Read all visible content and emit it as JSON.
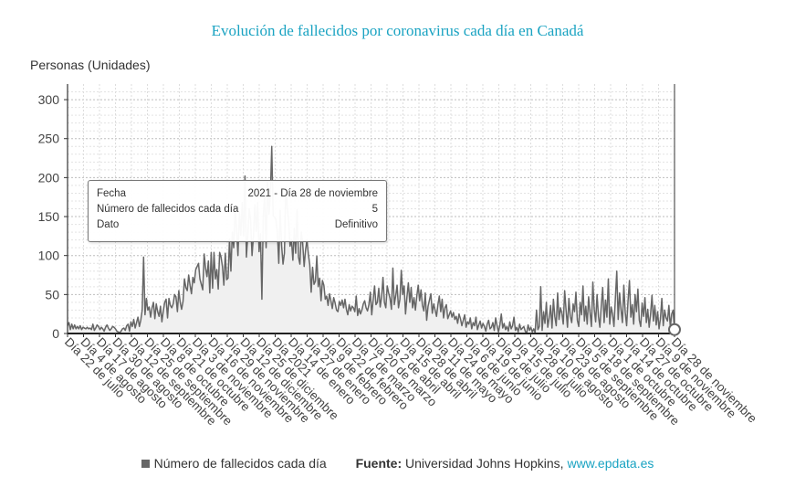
{
  "title": "Evolución de fallecidos por coronavirus cada día en Canadá",
  "y_axis_label": "Personas (Unidades)",
  "tooltip": {
    "rows": [
      {
        "key": "Fecha",
        "value": "2021 - Día 28 de noviembre"
      },
      {
        "key": "Número de fallecidos cada día",
        "value": "5"
      },
      {
        "key": "Dato",
        "value": "Definitivo"
      }
    ]
  },
  "legend": {
    "series_label": "Número de fallecidos cada día"
  },
  "source": {
    "label": "Fuente:",
    "text": "Universidad Johns Hopkins,",
    "link": "www.epdata.es"
  },
  "colors": {
    "title": "#1aa3c2",
    "series": "#666666",
    "link": "#1aa3c2",
    "fill": "#f0f0f0"
  },
  "chart_data": {
    "type": "area",
    "title": "Evolución de fallecidos por coronavirus cada día en Canadá",
    "ylabel": "Personas (Unidades)",
    "ylim": [
      0,
      320
    ],
    "yticks": [
      0,
      50,
      100,
      150,
      200,
      250,
      300
    ],
    "grid": true,
    "legend_position": "bottom",
    "x_tick_labels": [
      "Día 22 de julio",
      "Día 4 de agosto",
      "Día 17 de agosto",
      "Día 30 de agosto",
      "Día 12 de septiembre",
      "Día 25 de septiembre",
      "Día 8 de octubre",
      "Día 21 de octubre",
      "Día 3 de noviembre",
      "Día 16 de noviembre",
      "Día 29 de noviembre",
      "Día 12 de diciembre",
      "Día 25 de diciembre",
      "Día 2021",
      "Día 14 de enero",
      "Día 27 de enero",
      "Día 9 de febrero",
      "Día 22 de febrero",
      "Día 7 de marzo",
      "Día 20 de marzo",
      "Día 2 de abril",
      "Día 15 de abril",
      "Día 28 de abril",
      "Día 11 de mayo",
      "Día 24 de mayo",
      "Día 6 de junio",
      "Día 19 de junio",
      "Día 2 de julio",
      "Día 15 de julio",
      "Día 28 de julio",
      "Día 10 de agosto",
      "Día 23 de agosto",
      "Día 5 de septiembre",
      "Día 18 de septiembre",
      "Día 1 de octubre",
      "Día 14 de octubre",
      "Día 27 de octubre",
      "Día 9 de noviembre",
      "Día 28 de noviembre"
    ],
    "series": [
      {
        "name": "Número de fallecidos cada día",
        "x_start": "2020-07-22",
        "x_end": "2021-11-28",
        "values": [
          10,
          14,
          5,
          12,
          6,
          11,
          6,
          9,
          6,
          10,
          5,
          8,
          7,
          6,
          8,
          6,
          7,
          5,
          12,
          4,
          7,
          11,
          9,
          5,
          8,
          6,
          3,
          8,
          11,
          7,
          4,
          6,
          9,
          8,
          6,
          3,
          2,
          1,
          3,
          6,
          7,
          4,
          10,
          12,
          3,
          15,
          9,
          18,
          7,
          14,
          21,
          9,
          17,
          30,
          98,
          24,
          45,
          30,
          34,
          21,
          33,
          40,
          19,
          38,
          28,
          22,
          35,
          15,
          29,
          40,
          44,
          20,
          45,
          36,
          33,
          38,
          50,
          47,
          28,
          55,
          40,
          31,
          41,
          70,
          59,
          55,
          75,
          62,
          51,
          72,
          65,
          82,
          86,
          90,
          70,
          63,
          56,
          102,
          84,
          73,
          93,
          52,
          104,
          58,
          104,
          70,
          82,
          57,
          104,
          98,
          86,
          62,
          103,
          69,
          71,
          121,
          80,
          130,
          110,
          160,
          135,
          100,
          155,
          126,
          168,
          125,
          202,
          98,
          126,
          160,
          145,
          100,
          125,
          165,
          131,
          168,
          105,
          128,
          44,
          152,
          177,
          110,
          195,
          153,
          177,
          240,
          151,
          149,
          146,
          129,
          90,
          158,
          113,
          89,
          103,
          188,
          163,
          144,
          112,
          120,
          94,
          135,
          103,
          159,
          98,
          89,
          130,
          115,
          86,
          107,
          120,
          102,
          88,
          53,
          85,
          63,
          67,
          99,
          60,
          71,
          42,
          68,
          62,
          44,
          48,
          36,
          51,
          42,
          32,
          46,
          39,
          30,
          28,
          41,
          36,
          43,
          33,
          44,
          31,
          24,
          37,
          29,
          35,
          33,
          28,
          48,
          23,
          32,
          25,
          30,
          38,
          42,
          33,
          29,
          37,
          53,
          24,
          43,
          61,
          37,
          40,
          58,
          34,
          47,
          72,
          40,
          33,
          61,
          52,
          45,
          31,
          84,
          37,
          48,
          62,
          33,
          44,
          81,
          50,
          61,
          25,
          47,
          65,
          40,
          59,
          33,
          46,
          30,
          48,
          62,
          42,
          56,
          36,
          29,
          52,
          17,
          35,
          43,
          51,
          26,
          38,
          30,
          22,
          37,
          48,
          28,
          44,
          20,
          33,
          37,
          19,
          24,
          29,
          21,
          27,
          18,
          22,
          13,
          25,
          19,
          10,
          17,
          24,
          8,
          15,
          12,
          20,
          6,
          14,
          10,
          21,
          5,
          11,
          16,
          7,
          13,
          9,
          3,
          12,
          17,
          6,
          8,
          14,
          4,
          20,
          10,
          2,
          11,
          25,
          7,
          13,
          5,
          9,
          3,
          15,
          6,
          10,
          21,
          4,
          8,
          2,
          12,
          5,
          7,
          9,
          3,
          0,
          11,
          4,
          8,
          2,
          6,
          1,
          30,
          5,
          9,
          60,
          4,
          28,
          13,
          40,
          8,
          20,
          36,
          7,
          44,
          22,
          10,
          52,
          18,
          33,
          26,
          12,
          55,
          30,
          8,
          45,
          22,
          14,
          38,
          28,
          53,
          17,
          9,
          40,
          24,
          61,
          16,
          35,
          12,
          47,
          27,
          9,
          66,
          31,
          15,
          50,
          22,
          8,
          36,
          59,
          14,
          43,
          21,
          70,
          12,
          34,
          25,
          9,
          45,
          80,
          18,
          52,
          31,
          14,
          62,
          27,
          10,
          42,
          68,
          21,
          37,
          12,
          50,
          28,
          57,
          17,
          9,
          39,
          22,
          46,
          14,
          31,
          8,
          25,
          49,
          16,
          36,
          11,
          28,
          6,
          19,
          45,
          10,
          30,
          20,
          16,
          36,
          8,
          25,
          30,
          5
        ]
      }
    ]
  }
}
